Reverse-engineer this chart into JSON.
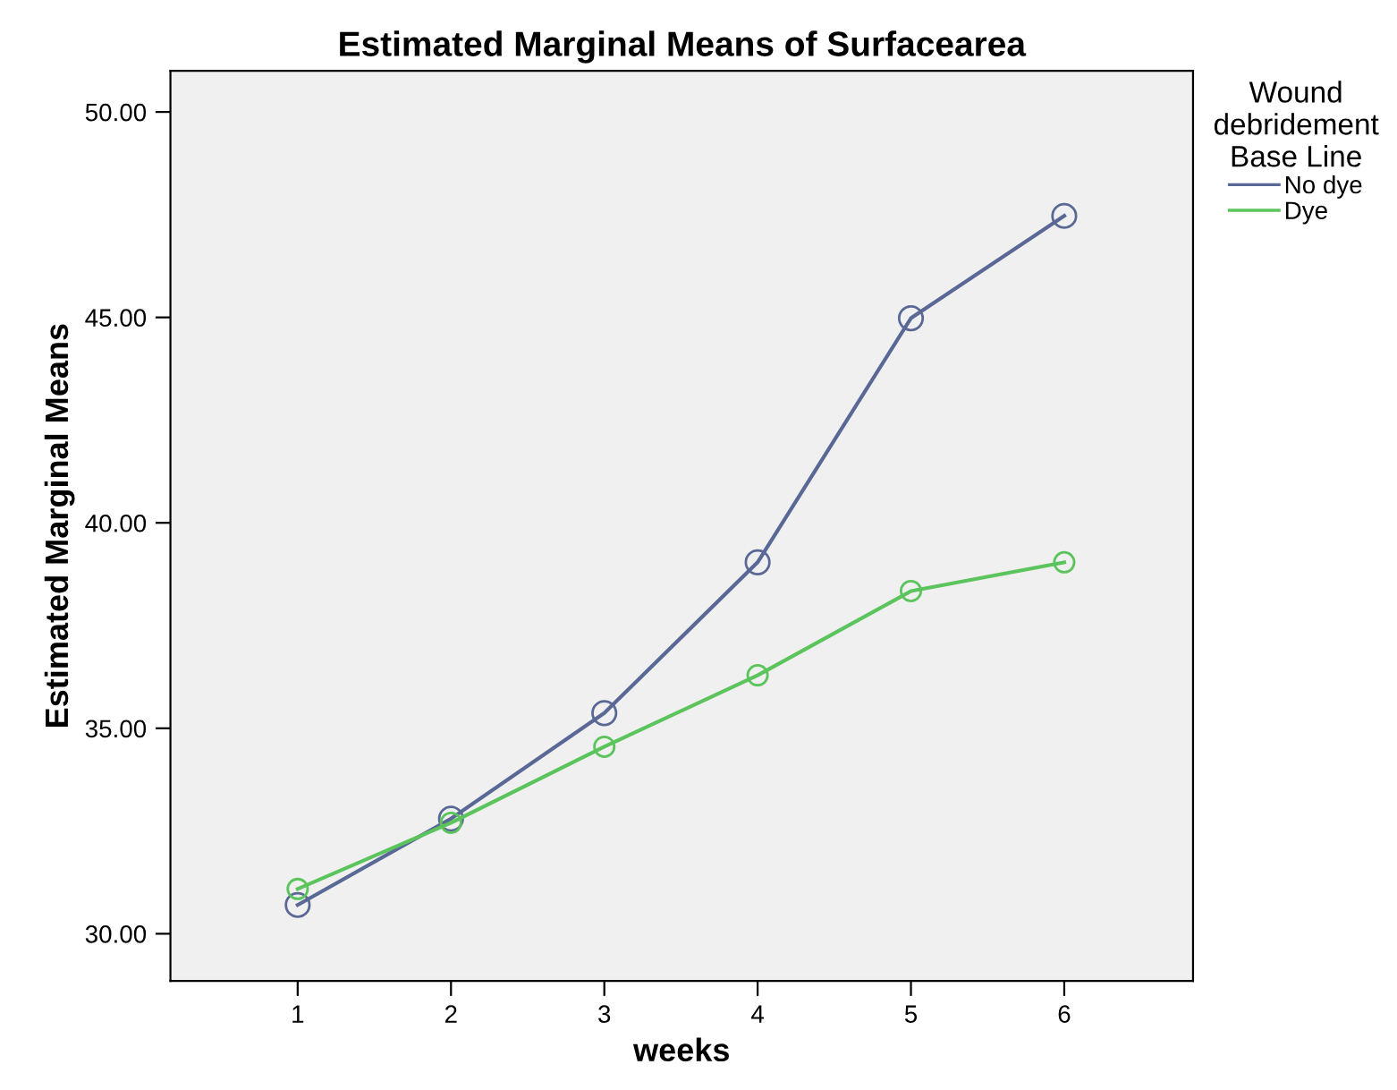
{
  "chart_data": {
    "type": "line",
    "title": "Estimated Marginal Means of Surfacearea",
    "xlabel": "weeks",
    "ylabel": "Estimated Marginal Means",
    "legend_title": "Wound\ndebridement\nBase Line",
    "x": [
      1,
      2,
      3,
      4,
      5,
      6
    ],
    "series": [
      {
        "name": "No dye",
        "color": "#5a6896",
        "values": [
          30.7,
          32.8,
          35.37,
          39.04,
          44.98,
          47.47
        ]
      },
      {
        "name": "Dye",
        "color": "#5cc45c",
        "values": [
          31.09,
          32.7,
          34.55,
          36.29,
          38.34,
          39.04
        ]
      }
    ],
    "xlim": [
      0.17,
      6.84
    ],
    "xticks": [
      1,
      2,
      3,
      4,
      5,
      6
    ],
    "ylim": [
      28.85,
      51.0
    ],
    "yticks": [
      {
        "value": 30,
        "label": "30.00"
      },
      {
        "value": 35,
        "label": "35.00"
      },
      {
        "value": 40,
        "label": "40.00"
      },
      {
        "value": 45,
        "label": "45.00"
      },
      {
        "value": 50,
        "label": "50.00"
      }
    ],
    "marker": "circle",
    "line_style": "solid",
    "grid": false,
    "legend": "right"
  }
}
